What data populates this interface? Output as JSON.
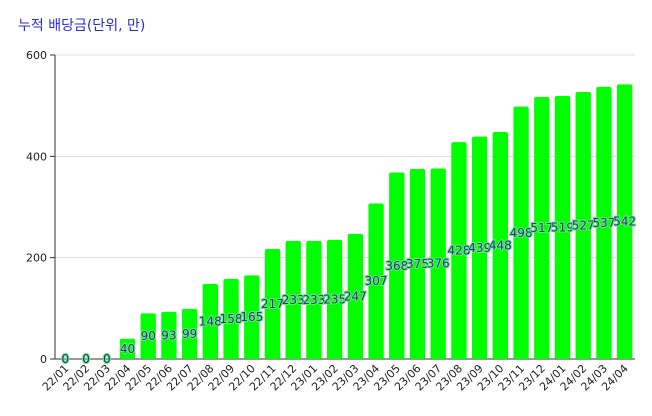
{
  "chart_data": {
    "type": "bar",
    "title": "누적 배당금(단위, 만)",
    "categories": [
      "22/01",
      "22/02",
      "22/03",
      "22/04",
      "22/05",
      "22/06",
      "22/07",
      "22/08",
      "22/09",
      "22/10",
      "22/11",
      "22/12",
      "23/01",
      "23/02",
      "23/03",
      "23/04",
      "23/05",
      "23/06",
      "23/07",
      "23/08",
      "23/09",
      "23/10",
      "23/11",
      "23/12",
      "24/01",
      "24/02",
      "24/03",
      "24/04"
    ],
    "values": [
      0,
      0,
      0,
      40,
      90,
      93,
      99,
      148,
      158,
      165,
      217,
      233,
      233,
      235,
      247,
      307,
      368,
      375,
      376,
      428,
      439,
      448,
      498,
      517,
      519,
      527,
      537,
      542
    ],
    "color": "#00ff00",
    "ylim": [
      0,
      600
    ],
    "yticks": [
      0,
      200,
      400,
      600
    ],
    "grid": true
  }
}
